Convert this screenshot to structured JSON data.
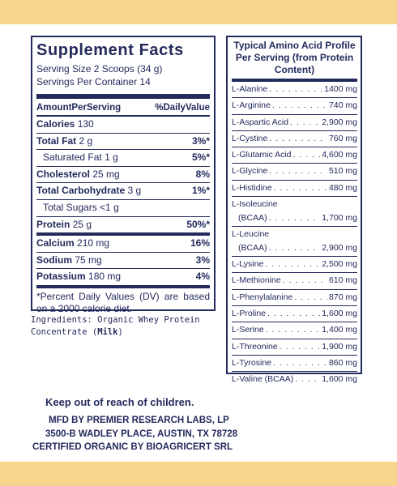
{
  "facts": {
    "title": "Supplement Facts",
    "serving_size": "Serving Size 2 Scoops (34 g)",
    "servings_per_container": "Servings Per Container 14",
    "header_left": "AmountPerServing",
    "header_right": "%DailyValue",
    "rows": [
      {
        "name": "Calories",
        "amount": "130",
        "dv": ""
      },
      {
        "name": "Total Fat",
        "amount": "2 g",
        "dv": "3%*"
      },
      {
        "name": "Saturated Fat",
        "amount": "1 g",
        "dv": "5%*"
      },
      {
        "name": "Cholesterol",
        "amount": "25 mg",
        "dv": "8%"
      },
      {
        "name": "Total Carbohydrate",
        "amount": "3 g",
        "dv": "1%*"
      },
      {
        "name": "Total Sugars",
        "amount": "<1 g",
        "dv": ""
      },
      {
        "name": "Protein",
        "amount": "25 g",
        "dv": "50%*"
      },
      {
        "name": "Calcium",
        "amount": "210 mg",
        "dv": "16%"
      },
      {
        "name": "Sodium",
        "amount": "75 mg",
        "dv": "3%"
      },
      {
        "name": "Potassium",
        "amount": "180 mg",
        "dv": "4%"
      }
    ],
    "footnote": "*Percent Daily Values (DV) are based on a 2000 calorie diet."
  },
  "ingredients": {
    "text": "Ingredients: Organic Whey Protein Concentrate (",
    "allergen": "Milk",
    "close": ")"
  },
  "amino": {
    "title": "Typical Amino Acid Profile Per Serving (from Protein Content)",
    "items": [
      {
        "name": "L-Alanine",
        "value": "1400 mg"
      },
      {
        "name": "L-Arginine",
        "value": "740 mg"
      },
      {
        "name": "L-Aspartic Acid",
        "value": "2,900 mg"
      },
      {
        "name": "L-Cystine",
        "value": "760 mg"
      },
      {
        "name": "L-Glutamic Acid",
        "value": "4,600 mg"
      },
      {
        "name": "L-Glycine",
        "value": "510 mg"
      },
      {
        "name": "L-Histidine",
        "value": "480 mg"
      },
      {
        "name": "L-Isoleucine",
        "sub": "(BCAA)",
        "value": "1,700 mg"
      },
      {
        "name": "L-Leucine",
        "sub": "(BCAA)",
        "value": "2,900 mg"
      },
      {
        "name": "L-Lysine",
        "value": "2,500 mg"
      },
      {
        "name": "L-Methionine",
        "value": "610 mg"
      },
      {
        "name": "L-Phenylalanine",
        "value": "870 mg"
      },
      {
        "name": "L-Proline",
        "value": "1,600 mg"
      },
      {
        "name": "L-Serine",
        "value": "1,400 mg"
      },
      {
        "name": "L-Threonine",
        "value": "1,900 mg"
      },
      {
        "name": "L-Tyrosine",
        "value": "860 mg"
      },
      {
        "name": "L-Valine (BCAA)",
        "value": "1,600 mg"
      }
    ]
  },
  "bottom": {
    "warning": "Keep out of reach of children.",
    "mfd_line1": "MFD BY PREMIER RESEARCH LABS, LP",
    "mfd_line2": "3500-B WADLEY PLACE, AUSTIN, TX 78728",
    "mfd_line3": "CERTIFIED ORGANIC BY BIOAGRICERT SRL"
  },
  "colors": {
    "ink": "#232a5c",
    "band": "#f7d58c"
  }
}
